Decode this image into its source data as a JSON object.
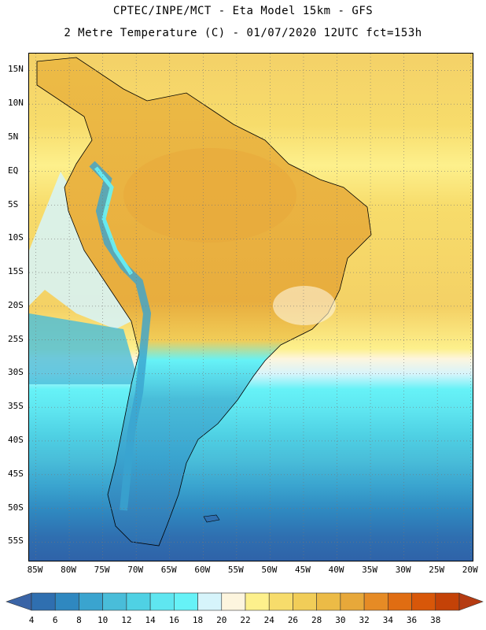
{
  "header": {
    "line1": "CPTEC/INPE/MCT -  Eta Model 15km - GFS",
    "line2": "2 Metre Temperature (C) - 01/07/2020 12UTC fct=153h"
  },
  "map": {
    "lat_labels": [
      "15N",
      "10N",
      "5N",
      "EQ",
      "5S",
      "10S",
      "15S",
      "20S",
      "25S",
      "30S",
      "35S",
      "40S",
      "45S",
      "50S",
      "55S"
    ],
    "lon_labels": [
      "85W",
      "80W",
      "75W",
      "70W",
      "65W",
      "60W",
      "55W",
      "50W",
      "45W",
      "40W",
      "35W",
      "30W",
      "25W",
      "20W"
    ],
    "lat_range": [
      17.5,
      -58
    ],
    "lon_range": [
      -86,
      -19.5
    ]
  },
  "colorbar": {
    "labels": [
      "4",
      "6",
      "8",
      "10",
      "12",
      "14",
      "16",
      "18",
      "20",
      "22",
      "24",
      "26",
      "28",
      "30",
      "32",
      "34",
      "36",
      "38"
    ],
    "colors": [
      "#3a64a6",
      "#2f6fb0",
      "#2f88c0",
      "#3aa4cf",
      "#49bdd9",
      "#4fd1e4",
      "#5fe6f0",
      "#66f2f7",
      "#d6f4fb",
      "#fdf5de",
      "#fdf08c",
      "#f7dc6b",
      "#f1cd58",
      "#ecbb46",
      "#e7a83a",
      "#e68b25",
      "#e06d12",
      "#d85709",
      "#c44207",
      "#b53b12"
    ]
  }
}
